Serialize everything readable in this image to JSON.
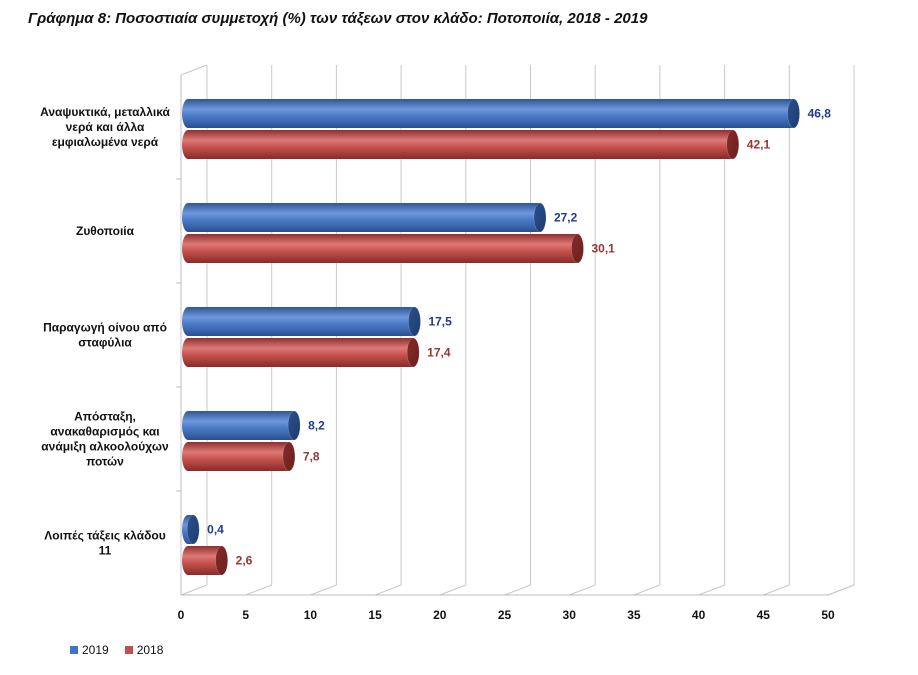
{
  "chart_data": {
    "type": "bar",
    "orientation": "horizontal",
    "title": "Γράφημα 8: Ποσοστιαία συμμετοχή (%) των τάξεων στον κλάδο: Ποτοποιία, 2018 - 2019",
    "categories": [
      "Αναψυκτικά, μεταλλικά νερά και άλλα εμφιαλωμένα νερά",
      "Ζυθοποιία",
      "Παραγωγή οίνου από σταφύλια",
      "Απόσταξη, ανακαθαρισμός και ανάμιξη αλκοολούχων ποτών",
      "Λοιπές τάξεις κλάδου 11"
    ],
    "category_lines": [
      [
        "Αναψυκτικά, μεταλλικά",
        "νερά και άλλα",
        "εμφιαλωμένα νερά"
      ],
      [
        "Ζυθοποιία"
      ],
      [
        "Παραγωγή οίνου από",
        "σταφύλια"
      ],
      [
        "Απόσταξη,",
        "ανακαθαρισμός και",
        "ανάμιξη αλκοολούχων",
        "ποτών"
      ],
      [
        "Λοιπές τάξεις κλάδου",
        "11"
      ]
    ],
    "series": [
      {
        "name": "2019",
        "color": "#4472C4",
        "label_color": "#1F3A93",
        "values": [
          46.8,
          27.2,
          17.5,
          8.2,
          0.4
        ],
        "labels": [
          "46,8",
          "27,2",
          "17,5",
          "8,2",
          "0,4"
        ]
      },
      {
        "name": "2018",
        "color": "#C0504D",
        "label_color": "#943634",
        "values": [
          42.1,
          30.1,
          17.4,
          7.8,
          2.6
        ],
        "labels": [
          "42,1",
          "30,1",
          "17,4",
          "7,8",
          "2,6"
        ]
      }
    ],
    "xlim": [
      0,
      50
    ],
    "xticks": [
      "0",
      "5",
      "10",
      "15",
      "20",
      "25",
      "30",
      "35",
      "40",
      "45",
      "50"
    ],
    "grid": true,
    "legend_position": "bottom-left"
  }
}
